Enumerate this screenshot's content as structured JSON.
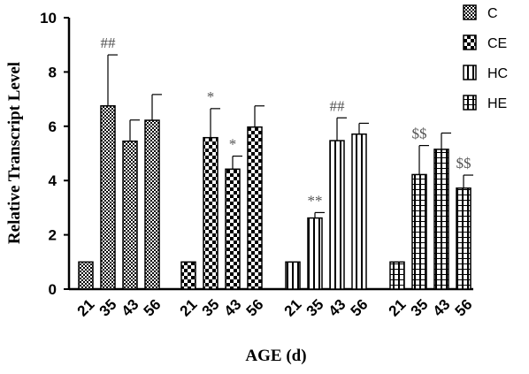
{
  "chart_data": {
    "type": "bar",
    "xlabel": "AGE (d)",
    "ylabel": "Relative Transcript Level",
    "ylim": [
      0,
      10
    ],
    "yticks": [
      "0",
      "2",
      "4",
      "6",
      "8",
      "10"
    ],
    "categories": [
      "21",
      "35",
      "43",
      "56"
    ],
    "legend": {
      "placement": "top-right",
      "entries": [
        "C",
        "CE",
        "HC",
        "HE"
      ]
    },
    "grid": false,
    "series": [
      {
        "name": "C",
        "pattern": "checker-fine",
        "values": [
          1.0,
          6.75,
          5.45,
          6.22
        ],
        "errors": [
          0,
          1.88,
          0.78,
          0.95
        ]
      },
      {
        "name": "CE",
        "pattern": "checker-coarse",
        "values": [
          1.0,
          5.58,
          4.42,
          5.97
        ],
        "errors": [
          0,
          1.07,
          0.48,
          0.78
        ]
      },
      {
        "name": "HC",
        "pattern": "vertical-stripes",
        "values": [
          1.0,
          2.62,
          5.47,
          5.71
        ],
        "errors": [
          0,
          0.2,
          0.84,
          0.4
        ]
      },
      {
        "name": "HE",
        "pattern": "vertical-light",
        "values": [
          1.0,
          4.22,
          5.15,
          3.72
        ],
        "errors": [
          0,
          1.07,
          0.6,
          0.48
        ]
      }
    ],
    "annotations": [
      {
        "text": "##",
        "series": 0,
        "category": 1
      },
      {
        "text": "*",
        "series": 1,
        "category": 1
      },
      {
        "text": "*",
        "series": 1,
        "category": 2
      },
      {
        "text": "##",
        "series": 2,
        "category": 2
      },
      {
        "text": "**",
        "series": 2,
        "category": 1
      },
      {
        "text": "$$",
        "series": 3,
        "category": 1
      },
      {
        "text": "$$",
        "series": 3,
        "category": 3
      }
    ]
  }
}
